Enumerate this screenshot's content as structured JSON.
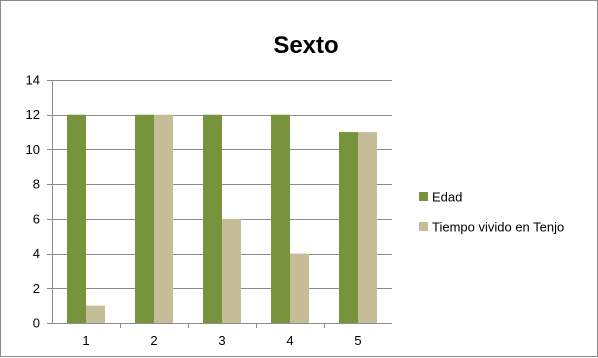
{
  "chart_data": {
    "type": "bar",
    "title": "Sexto",
    "xlabel": "",
    "ylabel": "",
    "categories": [
      "1",
      "2",
      "3",
      "4",
      "5"
    ],
    "series": [
      {
        "name": "Edad",
        "values": [
          12,
          12,
          12,
          12,
          11
        ],
        "color": "#77933C"
      },
      {
        "name": "Tiempo vivido en Tenjo",
        "values": [
          1,
          12,
          6,
          4,
          11
        ],
        "color": "#C4BD97"
      }
    ],
    "ylim": [
      0,
      14
    ],
    "yticks": [
      0,
      2,
      4,
      6,
      8,
      10,
      12,
      14
    ],
    "grid": true,
    "legend_position": "right"
  }
}
